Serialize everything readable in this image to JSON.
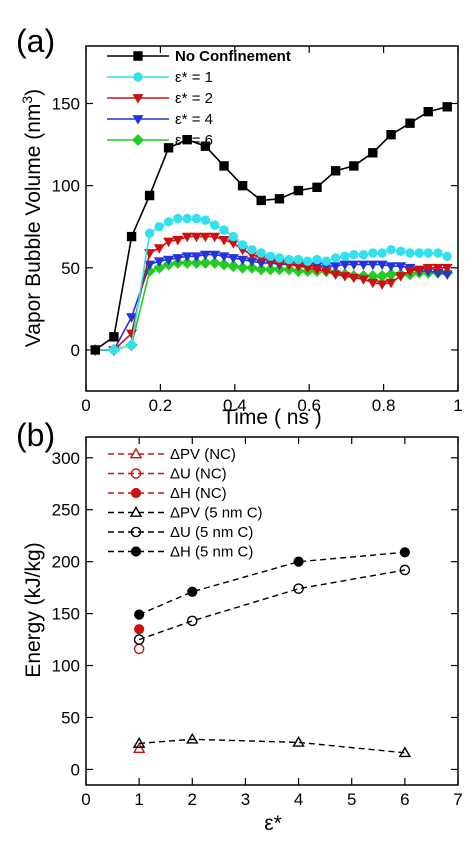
{
  "chart_data": [
    {
      "type": "line",
      "panel_label": "(a)",
      "xlabel": "Time ( ns )",
      "ylabel": "Vapor Bubble Volume (nm",
      "ylabel_superscript": "3",
      "ylabel_suffix": ")",
      "xlim": [
        0,
        1
      ],
      "ylim": [
        -25,
        185
      ],
      "xticks": [
        0,
        0.2,
        0.4,
        0.6,
        0.8,
        1
      ],
      "xtick_labels": [
        "0",
        "0.2",
        "0.4",
        "0.6",
        "0.8",
        "1"
      ],
      "yticks": [
        0,
        50,
        100,
        150
      ],
      "ytick_labels": [
        "0",
        "50",
        "100",
        "150"
      ],
      "grid": false,
      "legend_position": "top-left",
      "series": [
        {
          "name": "No Confinement",
          "color": "#000000",
          "marker": "square",
          "x": [
            0.025,
            0.075,
            0.1225,
            0.171,
            0.222,
            0.272,
            0.321,
            0.371,
            0.421,
            0.471,
            0.52,
            0.571,
            0.621,
            0.671,
            0.72,
            0.771,
            0.82,
            0.871,
            0.92,
            0.971
          ],
          "y": [
            0,
            8,
            69,
            94,
            123,
            128,
            124,
            112,
            100,
            91,
            92,
            97,
            99,
            109,
            112,
            120,
            131,
            138,
            145,
            148
          ]
        },
        {
          "name": "1",
          "color": "#33e0ee",
          "marker": "circle",
          "x": [
            0.025,
            0.075,
            0.1225,
            0.171,
            0.197,
            0.222,
            0.247,
            0.272,
            0.297,
            0.321,
            0.346,
            0.371,
            0.396,
            0.421,
            0.446,
            0.471,
            0.496,
            0.52,
            0.546,
            0.571,
            0.596,
            0.621,
            0.646,
            0.671,
            0.696,
            0.72,
            0.746,
            0.771,
            0.796,
            0.82,
            0.846,
            0.871,
            0.896,
            0.92,
            0.946,
            0.971
          ],
          "y": [
            0,
            0,
            3,
            71,
            75,
            78,
            80,
            80,
            80,
            79,
            76,
            73,
            69,
            64,
            61,
            59,
            57,
            56,
            55,
            55,
            54,
            55,
            54,
            56,
            57,
            58,
            58,
            59,
            59,
            61,
            60,
            59,
            59,
            59,
            59,
            57
          ]
        },
        {
          "name": "2",
          "color": "#cc1111",
          "marker": "triangle-down",
          "x": [
            0.025,
            0.075,
            0.1225,
            0.171,
            0.197,
            0.222,
            0.247,
            0.272,
            0.297,
            0.321,
            0.346,
            0.371,
            0.396,
            0.421,
            0.446,
            0.471,
            0.496,
            0.52,
            0.546,
            0.571,
            0.596,
            0.621,
            0.646,
            0.671,
            0.696,
            0.72,
            0.746,
            0.771,
            0.796,
            0.82,
            0.846,
            0.871,
            0.896,
            0.92,
            0.946,
            0.971
          ],
          "y": [
            0,
            0,
            10,
            59,
            62,
            66,
            67,
            69,
            69,
            69,
            69,
            67,
            65,
            61,
            58,
            56,
            54,
            53,
            52,
            51,
            50,
            49,
            48,
            46,
            45,
            44,
            43,
            41,
            40,
            41,
            45,
            48,
            49,
            50,
            50,
            50
          ]
        },
        {
          "name": "4",
          "color": "#2233dd",
          "marker": "triangle-down",
          "x": [
            0.025,
            0.075,
            0.1225,
            0.171,
            0.197,
            0.222,
            0.247,
            0.272,
            0.297,
            0.321,
            0.346,
            0.371,
            0.396,
            0.421,
            0.446,
            0.471,
            0.496,
            0.52,
            0.546,
            0.571,
            0.596,
            0.621,
            0.646,
            0.671,
            0.696,
            0.72,
            0.746,
            0.771,
            0.796,
            0.82,
            0.846,
            0.871,
            0.896,
            0.92,
            0.946,
            0.971
          ],
          "y": [
            0,
            0,
            20,
            52,
            54,
            55,
            56,
            57,
            57,
            58,
            58,
            57,
            56,
            55,
            54,
            53,
            53,
            52,
            52,
            52,
            51,
            51,
            51,
            51,
            52,
            52,
            52,
            52,
            52,
            51,
            51,
            50,
            48,
            48,
            47,
            46
          ]
        },
        {
          "name": "6",
          "color": "#22cc22",
          "marker": "diamond",
          "x": [
            0.025,
            0.075,
            0.1225,
            0.171,
            0.197,
            0.222,
            0.247,
            0.272,
            0.297,
            0.321,
            0.346,
            0.371,
            0.396,
            0.421,
            0.446,
            0.471,
            0.496,
            0.52,
            0.546,
            0.571,
            0.596,
            0.621,
            0.646,
            0.671,
            0.696,
            0.72,
            0.746,
            0.771,
            0.796,
            0.82,
            0.846,
            0.871,
            0.896,
            0.92,
            0.946,
            0.971
          ],
          "y": [
            0,
            0,
            3,
            48,
            50,
            52,
            53,
            53,
            53,
            53,
            53,
            52,
            51,
            50,
            50,
            49,
            49,
            49,
            49,
            48,
            48,
            48,
            48,
            47,
            46,
            45,
            45,
            45,
            45,
            46,
            46,
            46,
            47,
            47,
            47,
            47
          ]
        }
      ],
      "legend": [
        {
          "label": "No Confinement",
          "color": "#000000",
          "marker": "square",
          "bold": true
        },
        {
          "label": "ε* = 1",
          "color": "#33e0ee",
          "marker": "circle",
          "bold": false
        },
        {
          "label": "ε* = 2",
          "color": "#cc1111",
          "marker": "triangle-down",
          "bold": false
        },
        {
          "label": "ε* = 4",
          "color": "#2233dd",
          "marker": "triangle-down",
          "bold": false
        },
        {
          "label": "ε* = 6",
          "color": "#22cc22",
          "marker": "diamond",
          "bold": false
        }
      ]
    },
    {
      "type": "scatter",
      "panel_label": "(b)",
      "xlabel": "ε*",
      "ylabel": "Energy (kJ/kg)",
      "xlim": [
        0,
        7
      ],
      "ylim": [
        -15,
        320
      ],
      "xticks": [
        0,
        1,
        2,
        3,
        4,
        5,
        6,
        7
      ],
      "xtick_labels": [
        "0",
        "1",
        "2",
        "3",
        "4",
        "5",
        "6",
        "7"
      ],
      "yticks": [
        0,
        50,
        100,
        150,
        200,
        250,
        300
      ],
      "ytick_labels": [
        "0",
        "50",
        "100",
        "150",
        "200",
        "250",
        "300"
      ],
      "grid": false,
      "legend_position": "top-left",
      "series": [
        {
          "name": "ΔPV (NC)",
          "color": "#cc1111",
          "marker": "triangle-open",
          "dashed_line": false,
          "x": [
            1
          ],
          "y": [
            20
          ]
        },
        {
          "name": "ΔU (NC)",
          "color": "#cc1111",
          "marker": "circle-open",
          "dashed_line": false,
          "x": [
            1
          ],
          "y": [
            116
          ]
        },
        {
          "name": "ΔH (NC)",
          "color": "#cc1111",
          "marker": "circle-filled",
          "dashed_line": false,
          "x": [
            1
          ],
          "y": [
            135
          ]
        },
        {
          "name": "ΔPV (5 nm C)",
          "color": "#000000",
          "marker": "triangle-open",
          "dashed_line": true,
          "x": [
            1,
            2,
            4,
            6
          ],
          "y": [
            25,
            29,
            26,
            16
          ]
        },
        {
          "name": "ΔU (5 nm C)",
          "color": "#000000",
          "marker": "circle-open",
          "dashed_line": true,
          "x": [
            1,
            2,
            4,
            6
          ],
          "y": [
            125,
            143,
            174,
            192
          ]
        },
        {
          "name": "ΔH (5 nm C)",
          "color": "#000000",
          "marker": "circle-filled",
          "dashed_line": true,
          "x": [
            1,
            2,
            4,
            6
          ],
          "y": [
            149,
            171,
            200,
            209
          ]
        }
      ],
      "legend": [
        {
          "label": "ΔPV (NC)",
          "color": "#cc1111",
          "marker": "triangle-open"
        },
        {
          "label": "ΔU (NC)",
          "color": "#cc1111",
          "marker": "circle-open"
        },
        {
          "label": "ΔH (NC)",
          "color": "#cc1111",
          "marker": "circle-filled"
        },
        {
          "label": "ΔPV (5 nm C)",
          "color": "#000000",
          "marker": "triangle-open"
        },
        {
          "label": "ΔU (5 nm C)",
          "color": "#000000",
          "marker": "circle-open"
        },
        {
          "label": "ΔH (5 nm C)",
          "color": "#000000",
          "marker": "circle-filled"
        }
      ]
    }
  ]
}
